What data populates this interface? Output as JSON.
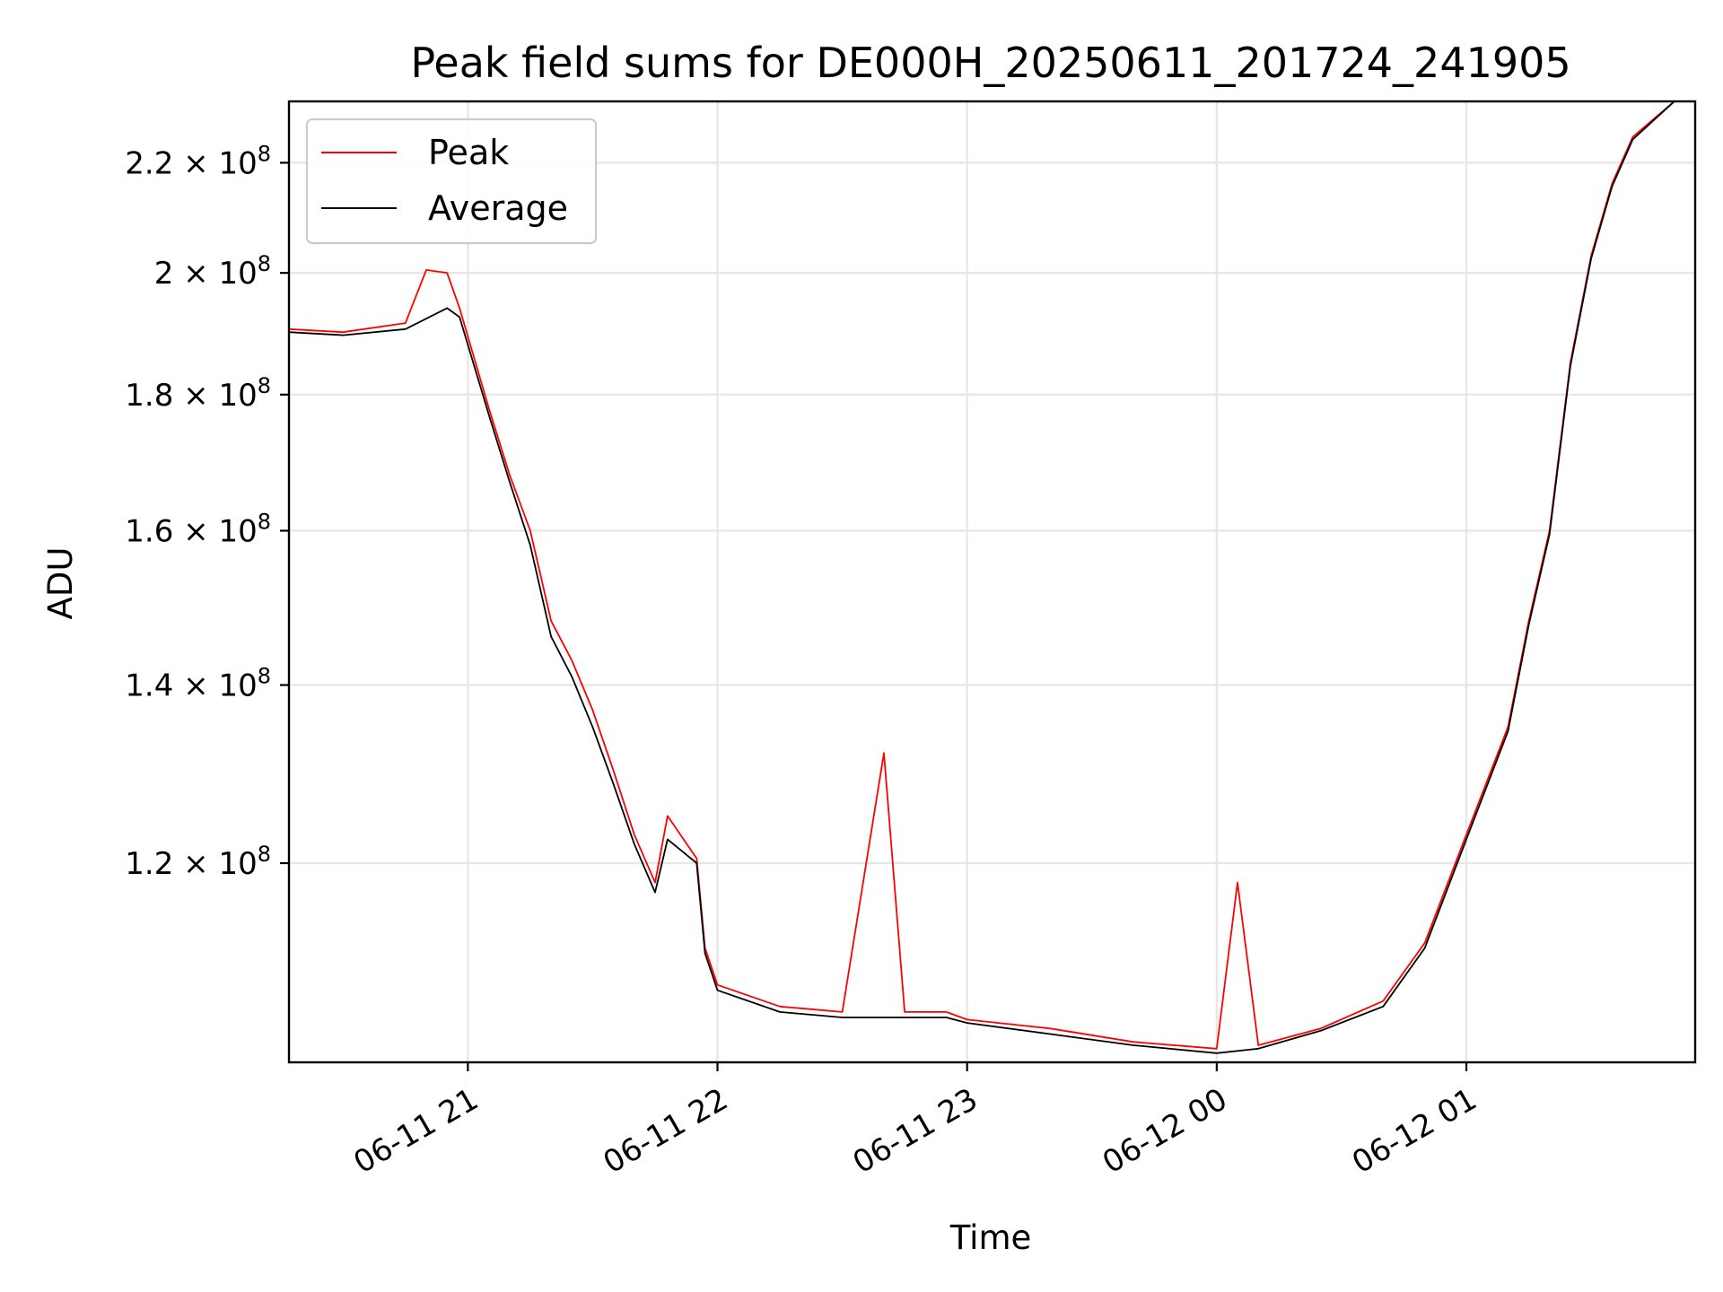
{
  "chart_data": {
    "type": "line",
    "title": "Peak field sums for DE000H_20250611_201724_241905",
    "xlabel": "Time",
    "ylabel": "ADU",
    "y_scale": "log",
    "xlim": [
      "2025-06-11 20:17",
      "2025-06-12 01:55"
    ],
    "ylim": [
      101000000,
      232000000
    ],
    "x_ticks": [
      {
        "value": "2025-06-11 21:00",
        "label": "06-11 21"
      },
      {
        "value": "2025-06-11 22:00",
        "label": "06-11 22"
      },
      {
        "value": "2025-06-11 23:00",
        "label": "06-11 23"
      },
      {
        "value": "2025-06-12 00:00",
        "label": "06-12 00"
      },
      {
        "value": "2025-06-12 01:00",
        "label": "06-12 01"
      }
    ],
    "y_ticks": [
      {
        "value": 120000000,
        "mantissa": "1.2",
        "exp": "8"
      },
      {
        "value": 140000000,
        "mantissa": "1.4",
        "exp": "8"
      },
      {
        "value": 160000000,
        "mantissa": "1.6",
        "exp": "8"
      },
      {
        "value": 180000000,
        "mantissa": "1.8",
        "exp": "8"
      },
      {
        "value": 200000000,
        "mantissa": "2",
        "exp": "8"
      },
      {
        "value": 220000000,
        "mantissa": "2.2",
        "exp": "8"
      }
    ],
    "grid": true,
    "legend_position": "top-left",
    "series": [
      {
        "name": "Peak",
        "color": "#ff0000",
        "points": [
          [
            "2025-06-11 20:17",
            190500000
          ],
          [
            "2025-06-11 20:30",
            190000000
          ],
          [
            "2025-06-11 20:45",
            191500000
          ],
          [
            "2025-06-11 20:50",
            200500000
          ],
          [
            "2025-06-11 20:55",
            200000000
          ],
          [
            "2025-06-11 20:58",
            194000000
          ],
          [
            "2025-06-11 21:05",
            178000000
          ],
          [
            "2025-06-11 21:10",
            168000000
          ],
          [
            "2025-06-11 21:15",
            160000000
          ],
          [
            "2025-06-11 21:20",
            148000000
          ],
          [
            "2025-06-11 21:25",
            143000000
          ],
          [
            "2025-06-11 21:30",
            137000000
          ],
          [
            "2025-06-11 21:35",
            130000000
          ],
          [
            "2025-06-11 21:40",
            123000000
          ],
          [
            "2025-06-11 21:45",
            118000000
          ],
          [
            "2025-06-11 21:48",
            125000000
          ],
          [
            "2025-06-11 21:55",
            120500000
          ],
          [
            "2025-06-11 21:57",
            111500000
          ],
          [
            "2025-06-11 22:00",
            108000000
          ],
          [
            "2025-06-11 22:15",
            106000000
          ],
          [
            "2025-06-11 22:30",
            105500000
          ],
          [
            "2025-06-11 22:40",
            132000000
          ],
          [
            "2025-06-11 22:45",
            105500000
          ],
          [
            "2025-06-11 22:55",
            105500000
          ],
          [
            "2025-06-11 23:00",
            104800000
          ],
          [
            "2025-06-11 23:20",
            104000000
          ],
          [
            "2025-06-11 23:40",
            102800000
          ],
          [
            "2025-06-12 00:00",
            102200000
          ],
          [
            "2025-06-12 00:05",
            118000000
          ],
          [
            "2025-06-12 00:10",
            102500000
          ],
          [
            "2025-06-12 00:25",
            104000000
          ],
          [
            "2025-06-12 00:40",
            106500000
          ],
          [
            "2025-06-12 00:50",
            112000000
          ],
          [
            "2025-06-12 01:00",
            123000000
          ],
          [
            "2025-06-12 01:10",
            135000000
          ],
          [
            "2025-06-12 01:15",
            148000000
          ],
          [
            "2025-06-12 01:20",
            160000000
          ],
          [
            "2025-06-12 01:25",
            185000000
          ],
          [
            "2025-06-12 01:30",
            203000000
          ],
          [
            "2025-06-12 01:35",
            216000000
          ],
          [
            "2025-06-12 01:40",
            225000000
          ],
          [
            "2025-06-12 01:50",
            232000000
          ],
          [
            "2025-06-12 01:55",
            232000000
          ]
        ]
      },
      {
        "name": "Average",
        "color": "#000000",
        "points": [
          [
            "2025-06-11 20:17",
            190000000
          ],
          [
            "2025-06-11 20:30",
            189500000
          ],
          [
            "2025-06-11 20:45",
            190500000
          ],
          [
            "2025-06-11 20:55",
            194000000
          ],
          [
            "2025-06-11 20:58",
            192500000
          ],
          [
            "2025-06-11 21:05",
            177000000
          ],
          [
            "2025-06-11 21:10",
            167000000
          ],
          [
            "2025-06-11 21:15",
            158000000
          ],
          [
            "2025-06-11 21:20",
            146000000
          ],
          [
            "2025-06-11 21:25",
            141000000
          ],
          [
            "2025-06-11 21:30",
            135000000
          ],
          [
            "2025-06-11 21:35",
            128500000
          ],
          [
            "2025-06-11 21:40",
            122000000
          ],
          [
            "2025-06-11 21:45",
            117000000
          ],
          [
            "2025-06-11 21:48",
            122500000
          ],
          [
            "2025-06-11 21:55",
            120000000
          ],
          [
            "2025-06-11 21:57",
            111000000
          ],
          [
            "2025-06-11 22:00",
            107500000
          ],
          [
            "2025-06-11 22:15",
            105500000
          ],
          [
            "2025-06-11 22:30",
            105000000
          ],
          [
            "2025-06-11 22:45",
            105000000
          ],
          [
            "2025-06-11 22:55",
            105000000
          ],
          [
            "2025-06-11 23:00",
            104500000
          ],
          [
            "2025-06-11 23:20",
            103500000
          ],
          [
            "2025-06-11 23:40",
            102500000
          ],
          [
            "2025-06-12 00:00",
            101800000
          ],
          [
            "2025-06-12 00:10",
            102200000
          ],
          [
            "2025-06-12 00:25",
            103800000
          ],
          [
            "2025-06-12 00:40",
            106000000
          ],
          [
            "2025-06-12 00:50",
            111500000
          ],
          [
            "2025-06-12 01:00",
            122500000
          ],
          [
            "2025-06-12 01:10",
            134500000
          ],
          [
            "2025-06-12 01:15",
            147500000
          ],
          [
            "2025-06-12 01:20",
            159500000
          ],
          [
            "2025-06-12 01:25",
            184500000
          ],
          [
            "2025-06-12 01:30",
            202500000
          ],
          [
            "2025-06-12 01:35",
            215500000
          ],
          [
            "2025-06-12 01:40",
            224500000
          ],
          [
            "2025-06-12 01:50",
            232000000
          ],
          [
            "2025-06-12 01:55",
            232000000
          ]
        ]
      }
    ]
  }
}
